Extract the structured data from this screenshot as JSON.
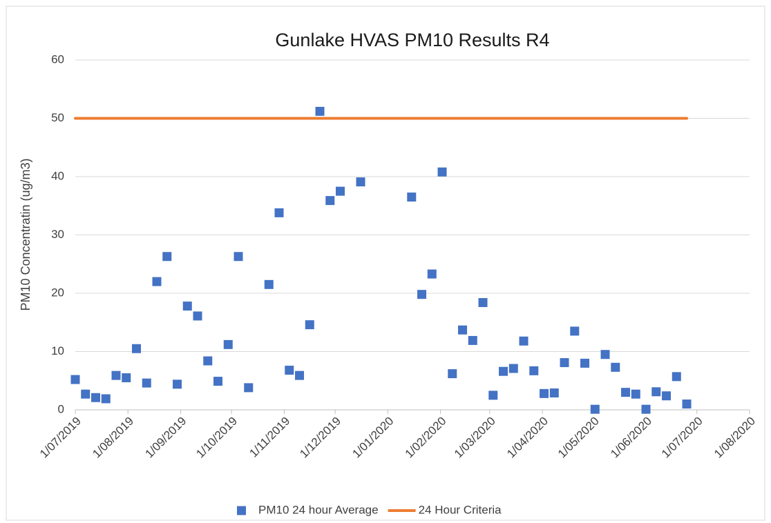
{
  "chart_data": {
    "type": "scatter",
    "title": "Gunlake HVAS PM10 Results R4",
    "y_label": "PM10 Concentratin (ug/m3)",
    "series": [
      {
        "name": "PM10 24 hour Average",
        "color": "#4472c4",
        "mode": "markers",
        "x": [
          "2019-07-01",
          "2019-07-07",
          "2019-07-13",
          "2019-07-19",
          "2019-07-25",
          "2019-07-31",
          "2019-08-06",
          "2019-08-12",
          "2019-08-18",
          "2019-08-24",
          "2019-08-30",
          "2019-09-05",
          "2019-09-11",
          "2019-09-17",
          "2019-09-23",
          "2019-09-29",
          "2019-10-05",
          "2019-10-11",
          "2019-10-23",
          "2019-10-29",
          "2019-11-04",
          "2019-11-10",
          "2019-11-16",
          "2019-11-22",
          "2019-11-28",
          "2019-12-04",
          "2019-12-16",
          "2020-01-15",
          "2020-01-21",
          "2020-01-27",
          "2020-02-02",
          "2020-02-08",
          "2020-02-14",
          "2020-02-20",
          "2020-02-26",
          "2020-03-03",
          "2020-03-09",
          "2020-03-15",
          "2020-03-21",
          "2020-03-27",
          "2020-04-02",
          "2020-04-08",
          "2020-04-14",
          "2020-04-20",
          "2020-04-26",
          "2020-05-02",
          "2020-05-08",
          "2020-05-14",
          "2020-05-20",
          "2020-05-26",
          "2020-06-01",
          "2020-06-07",
          "2020-06-13",
          "2020-06-19",
          "2020-06-25"
        ],
        "values": [
          5.2,
          2.7,
          2.1,
          1.9,
          5.9,
          5.5,
          10.5,
          4.6,
          22.0,
          26.3,
          4.4,
          17.8,
          16.1,
          8.4,
          4.9,
          11.2,
          26.3,
          3.8,
          21.5,
          33.8,
          6.8,
          5.9,
          14.6,
          51.2,
          35.9,
          37.5,
          39.1,
          36.5,
          19.8,
          23.3,
          40.8,
          6.2,
          13.7,
          11.9,
          18.4,
          2.5,
          6.6,
          7.1,
          11.8,
          6.7,
          2.8,
          2.9,
          8.1,
          13.5,
          8.0,
          0.1,
          9.5,
          7.3,
          3.0,
          2.7,
          0.1,
          3.1,
          2.4,
          5.7,
          1.0
        ]
      },
      {
        "name": "24 Hour Criteria",
        "color": "#ed7d31",
        "mode": "line",
        "x": [
          "2019-07-01",
          "2020-06-25"
        ],
        "values": [
          50,
          50
        ]
      }
    ],
    "xlim": [
      "2019-07-01",
      "2020-08-01"
    ],
    "xticks": [
      {
        "value": "2019-07-01",
        "label": "1/07/2019"
      },
      {
        "value": "2019-08-01",
        "label": "1/08/2019"
      },
      {
        "value": "2019-09-01",
        "label": "1/09/2019"
      },
      {
        "value": "2019-10-01",
        "label": "1/10/2019"
      },
      {
        "value": "2019-11-01",
        "label": "1/11/2019"
      },
      {
        "value": "2019-12-01",
        "label": "1/12/2019"
      },
      {
        "value": "2020-01-01",
        "label": "1/01/2020"
      },
      {
        "value": "2020-02-01",
        "label": "1/02/2020"
      },
      {
        "value": "2020-03-01",
        "label": "1/03/2020"
      },
      {
        "value": "2020-04-01",
        "label": "1/04/2020"
      },
      {
        "value": "2020-05-01",
        "label": "1/05/2020"
      },
      {
        "value": "2020-06-01",
        "label": "1/06/2020"
      },
      {
        "value": "2020-07-01",
        "label": "1/07/2020"
      },
      {
        "value": "2020-08-01",
        "label": "1/08/2020"
      }
    ],
    "ylim": [
      0,
      60
    ],
    "yticks": [
      0,
      10,
      20,
      30,
      40,
      50,
      60
    ],
    "grid": true,
    "legend": "bottom"
  }
}
